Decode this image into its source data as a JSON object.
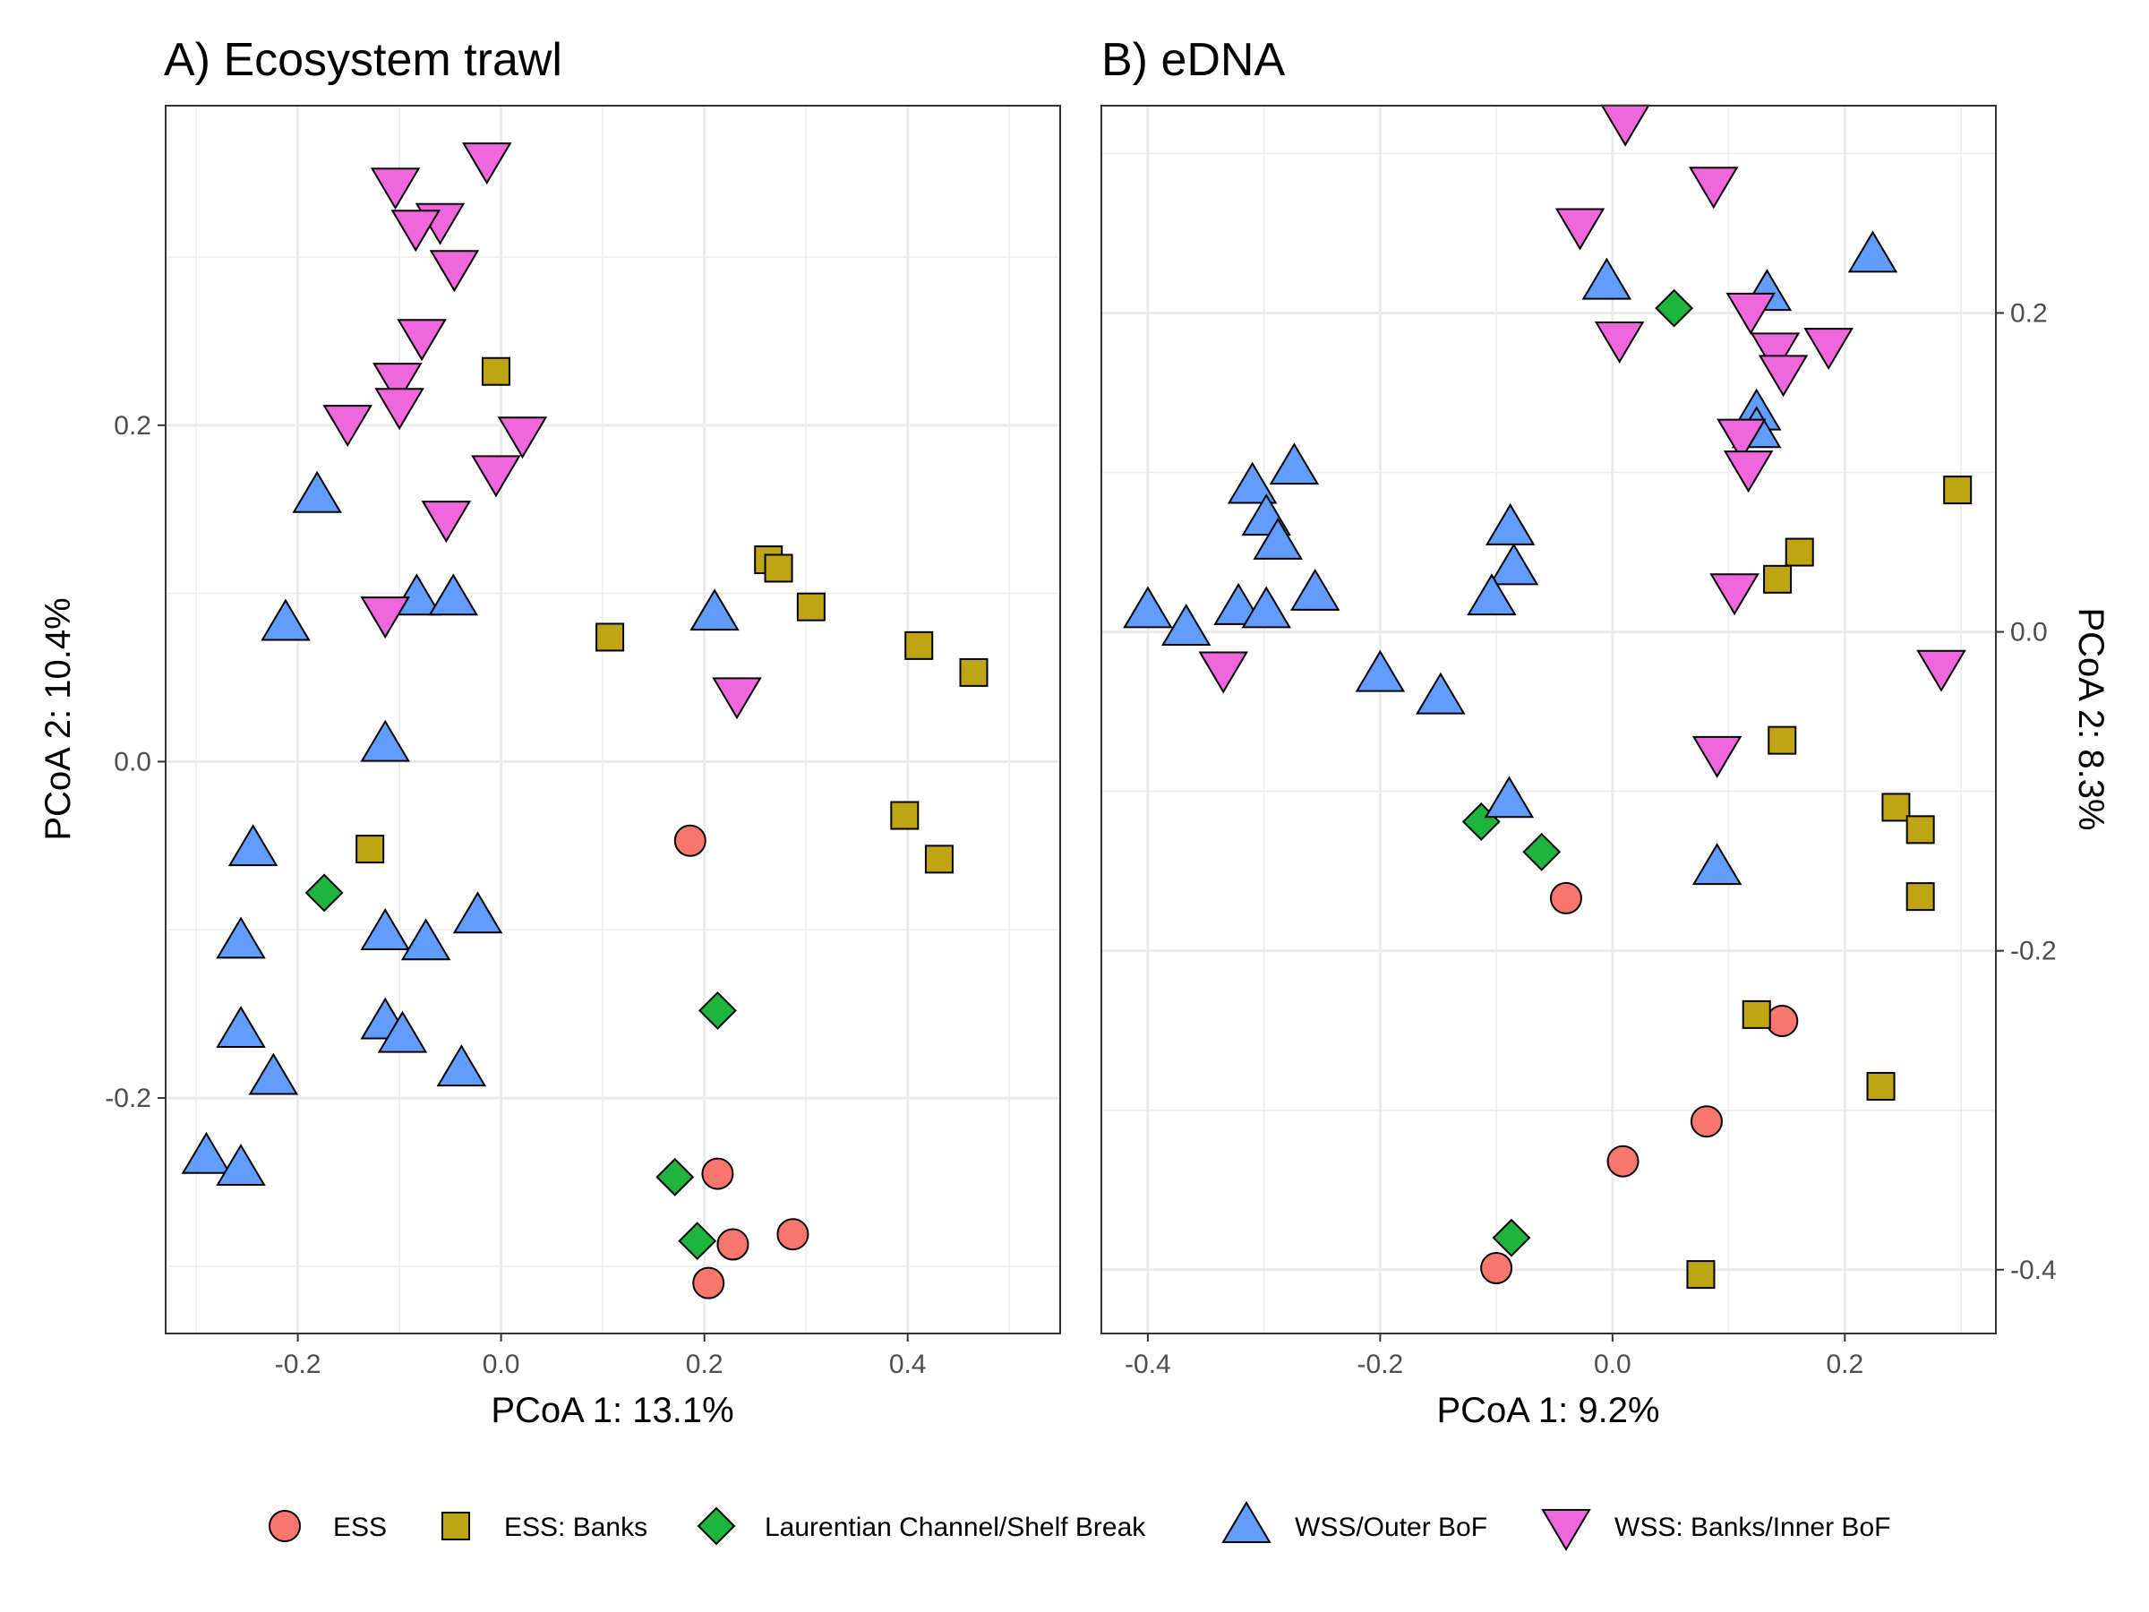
{
  "chart_data": [
    {
      "type": "scatter",
      "title": "A) Ecosystem trawl",
      "xlabel": "PCoA 1: 13.1%",
      "ylabel": "PCoA 2: 10.4%",
      "xlim": [
        -0.33,
        0.55
      ],
      "ylim": [
        -0.34,
        0.39
      ],
      "xticks": [
        -0.2,
        0.0,
        0.2,
        0.4
      ],
      "xtick_labels": [
        "-0.2",
        "0.0",
        "0.2",
        "0.4"
      ],
      "yticks": [
        -0.2,
        0.0,
        0.2
      ],
      "ytick_labels": [
        "-0.2",
        "0.0",
        "0.2"
      ],
      "y_axis_side": "left",
      "grid": true,
      "series": [
        {
          "name": "ESS",
          "points": [
            [
              0.186,
              -0.047
            ],
            [
              0.213,
              -0.245
            ],
            [
              0.228,
              -0.287
            ],
            [
              0.287,
              -0.281
            ],
            [
              0.204,
              -0.31
            ]
          ]
        },
        {
          "name": "ESS: Banks",
          "points": [
            [
              -0.005,
              0.232
            ],
            [
              0.263,
              0.12
            ],
            [
              0.273,
              0.115
            ],
            [
              0.305,
              0.092
            ],
            [
              0.107,
              0.074
            ],
            [
              0.411,
              0.069
            ],
            [
              0.465,
              0.053
            ],
            [
              0.397,
              -0.032
            ],
            [
              0.431,
              -0.058
            ],
            [
              -0.129,
              -0.052
            ]
          ]
        },
        {
          "name": "Laurentian Channel/Shelf Break",
          "points": [
            [
              -0.174,
              -0.078
            ],
            [
              0.213,
              -0.148
            ],
            [
              0.171,
              -0.247
            ],
            [
              0.193,
              -0.285
            ]
          ]
        },
        {
          "name": "WSS/Outer BoF",
          "points": [
            [
              -0.181,
              0.158
            ],
            [
              -0.212,
              0.082
            ],
            [
              -0.083,
              0.097
            ],
            [
              -0.047,
              0.097
            ],
            [
              0.21,
              0.088
            ],
            [
              -0.114,
              0.01
            ],
            [
              -0.244,
              -0.052
            ],
            [
              -0.256,
              -0.107
            ],
            [
              -0.114,
              -0.102
            ],
            [
              -0.074,
              -0.108
            ],
            [
              -0.023,
              -0.092
            ],
            [
              -0.256,
              -0.16
            ],
            [
              -0.114,
              -0.155
            ],
            [
              -0.097,
              -0.163
            ],
            [
              -0.224,
              -0.188
            ],
            [
              -0.039,
              -0.183
            ],
            [
              -0.29,
              -0.235
            ],
            [
              -0.256,
              -0.242
            ]
          ]
        },
        {
          "name": "WSS: Banks/Inner BoF",
          "points": [
            [
              -0.014,
              0.358
            ],
            [
              -0.104,
              0.343
            ],
            [
              -0.06,
              0.322
            ],
            [
              -0.084,
              0.318
            ],
            [
              -0.046,
              0.294
            ],
            [
              -0.078,
              0.253
            ],
            [
              -0.102,
              0.227
            ],
            [
              -0.1,
              0.212
            ],
            [
              -0.151,
              0.202
            ],
            [
              0.021,
              0.195
            ],
            [
              -0.005,
              0.172
            ],
            [
              -0.054,
              0.145
            ],
            [
              -0.114,
              0.088
            ],
            [
              0.232,
              0.04
            ]
          ]
        }
      ]
    },
    {
      "type": "scatter",
      "title": "B) eDNA",
      "xlabel": "PCoA 1: 9.2%",
      "ylabel": "PCoA 2: 8.3%",
      "xlim": [
        -0.44,
        0.33
      ],
      "ylim": [
        -0.44,
        0.33
      ],
      "xticks": [
        -0.4,
        -0.2,
        0.0,
        0.2
      ],
      "xtick_labels": [
        "-0.4",
        "-0.2",
        "0.0",
        "0.2"
      ],
      "yticks": [
        -0.4,
        -0.2,
        0.0,
        0.2
      ],
      "ytick_labels": [
        "-0.4",
        "-0.2",
        "0.0",
        "0.2"
      ],
      "y_axis_side": "right",
      "grid": true,
      "series": [
        {
          "name": "ESS",
          "points": [
            [
              -0.04,
              -0.167
            ],
            [
              0.146,
              -0.244
            ],
            [
              0.081,
              -0.307
            ],
            [
              0.009,
              -0.332
            ],
            [
              -0.1,
              -0.399
            ]
          ]
        },
        {
          "name": "ESS: Banks",
          "points": [
            [
              0.297,
              0.089
            ],
            [
              0.161,
              0.05
            ],
            [
              0.142,
              0.033
            ],
            [
              0.146,
              -0.068
            ],
            [
              0.244,
              -0.11
            ],
            [
              0.265,
              -0.124
            ],
            [
              0.265,
              -0.166
            ],
            [
              0.124,
              -0.24
            ],
            [
              0.231,
              -0.285
            ],
            [
              0.076,
              -0.403
            ]
          ]
        },
        {
          "name": "Laurentian Channel/Shelf Break",
          "points": [
            [
              0.053,
              0.203
            ],
            [
              -0.113,
              -0.119
            ],
            [
              -0.061,
              -0.138
            ],
            [
              -0.087,
              -0.38
            ]
          ]
        },
        {
          "name": "WSS/Outer BoF",
          "points": [
            [
              0.224,
              0.236
            ],
            [
              -0.005,
              0.219
            ],
            [
              0.133,
              0.212
            ],
            [
              0.124,
              0.137
            ],
            [
              0.124,
              0.126
            ],
            [
              -0.274,
              0.103
            ],
            [
              -0.31,
              0.091
            ],
            [
              -0.298,
              0.071
            ],
            [
              -0.288,
              0.056
            ],
            [
              -0.088,
              0.065
            ],
            [
              -0.085,
              0.04
            ],
            [
              -0.256,
              0.024
            ],
            [
              -0.104,
              0.021
            ],
            [
              -0.322,
              0.015
            ],
            [
              -0.298,
              0.013
            ],
            [
              -0.4,
              0.013
            ],
            [
              -0.367,
              0.002
            ],
            [
              -0.2,
              -0.027
            ],
            [
              -0.148,
              -0.041
            ],
            [
              -0.089,
              -0.106
            ],
            [
              0.09,
              -0.148
            ]
          ]
        },
        {
          "name": "WSS: Banks/Inner BoF",
          "points": [
            [
              0.011,
              0.32
            ],
            [
              0.087,
              0.281
            ],
            [
              -0.028,
              0.255
            ],
            [
              0.119,
              0.202
            ],
            [
              0.006,
              0.184
            ],
            [
              0.14,
              0.177
            ],
            [
              0.186,
              0.18
            ],
            [
              0.147,
              0.163
            ],
            [
              0.111,
              0.123
            ],
            [
              0.117,
              0.103
            ],
            [
              0.105,
              0.026
            ],
            [
              0.283,
              -0.022
            ],
            [
              -0.335,
              -0.023
            ],
            [
              0.09,
              -0.076
            ]
          ]
        }
      ]
    }
  ],
  "legend": {
    "placement": "bottom",
    "items": [
      {
        "label": "ESS",
        "shape": "circle",
        "color": "#F8766D"
      },
      {
        "label": "ESS: Banks",
        "shape": "square",
        "color": "#BFA414"
      },
      {
        "label": "Laurentian Channel/Shelf Break",
        "shape": "diamond",
        "color": "#1DB53E"
      },
      {
        "label": "WSS/Outer BoF",
        "shape": "triangle-up",
        "color": "#619CFF"
      },
      {
        "label": "WSS: Banks/Inner BoF",
        "shape": "triangle-down",
        "color": "#F066DD"
      }
    ]
  }
}
